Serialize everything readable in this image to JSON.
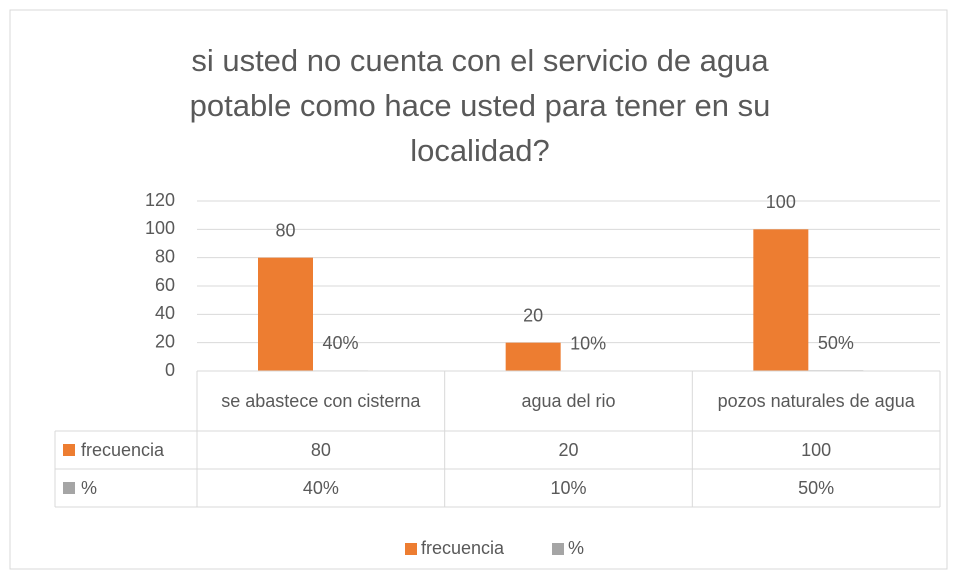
{
  "chart_data": {
    "type": "bar",
    "title": "si usted no cuenta con el servicio de agua potable como hace usted para tener en su localidad?",
    "categories": [
      "se abastece con cisterna",
      "agua del rio",
      "pozos naturales de agua"
    ],
    "series": [
      {
        "name": "frecuencia",
        "color": "#ed7d31",
        "values": [
          80,
          20,
          100
        ]
      },
      {
        "name": "%",
        "color": "#a5a5a5",
        "values": [
          0.4,
          0.1,
          0.5
        ],
        "value_labels": [
          "40%",
          "10%",
          "50%"
        ]
      }
    ],
    "ylim": [
      0,
      120
    ],
    "yticks": [
      0,
      20,
      40,
      60,
      80,
      100,
      120
    ],
    "grid": true,
    "legend": "bottom"
  }
}
